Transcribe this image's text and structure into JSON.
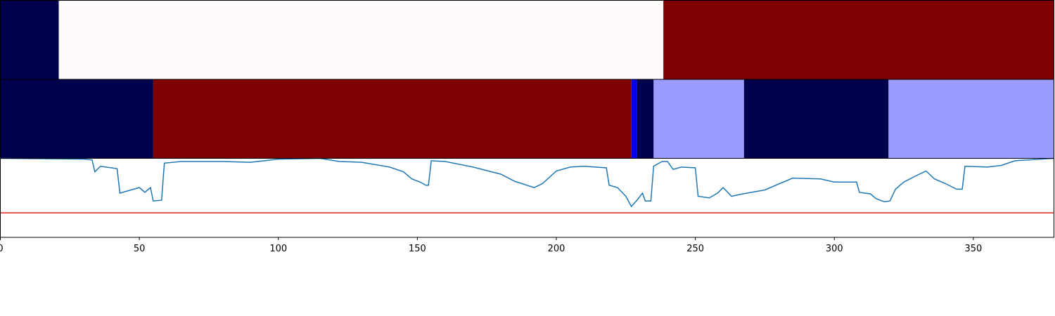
{
  "chart_data": [
    {
      "type": "segments",
      "xlim": [
        0,
        379
      ],
      "segments": [
        {
          "start": 0,
          "end": 21,
          "color": "#00004c"
        },
        {
          "start": 21,
          "end": 238.5,
          "color": "#fffbfb"
        },
        {
          "start": 238.5,
          "end": 379,
          "color": "#7f0000"
        }
      ]
    },
    {
      "type": "segments",
      "xlim": [
        0,
        379
      ],
      "segments": [
        {
          "start": 0,
          "end": 55,
          "color": "#00004c"
        },
        {
          "start": 55,
          "end": 227,
          "color": "#7f0000"
        },
        {
          "start": 227,
          "end": 229,
          "color": "#0000f0"
        },
        {
          "start": 229,
          "end": 235,
          "color": "#00004c"
        },
        {
          "start": 235,
          "end": 267.5,
          "color": "#9c9cff"
        },
        {
          "start": 267.5,
          "end": 319.5,
          "color": "#00004c"
        },
        {
          "start": 319.5,
          "end": 379,
          "color": "#9c9cff"
        }
      ]
    },
    {
      "type": "line",
      "xlim": [
        0,
        379
      ],
      "ylim": [
        0,
        1
      ],
      "xticks": [
        0,
        50,
        100,
        150,
        200,
        250,
        300,
        350
      ],
      "hline": 0.31,
      "hline_color": "#e0201b",
      "series": [
        {
          "color": "#1f77b4",
          "x": [
            0,
            30,
            33,
            34,
            36,
            42,
            43,
            46,
            50,
            52,
            54,
            55,
            58,
            59,
            65,
            80,
            90,
            100,
            115,
            122,
            130,
            140,
            145,
            148,
            151,
            153,
            154,
            155,
            160,
            170,
            180,
            185,
            192,
            195,
            200,
            205,
            210,
            218,
            219,
            222,
            225,
            227,
            229,
            231,
            232,
            234,
            235,
            238,
            240,
            242,
            245,
            250,
            251,
            255,
            258,
            260,
            263,
            267,
            275,
            285,
            295,
            300,
            308,
            309,
            313,
            315,
            318,
            320,
            322,
            325,
            330,
            333,
            336,
            340,
            344,
            346,
            347,
            355,
            360,
            365,
            379
          ],
          "values": [
            1.0,
            0.99,
            0.98,
            0.83,
            0.9,
            0.87,
            0.56,
            0.59,
            0.63,
            0.57,
            0.63,
            0.46,
            0.47,
            0.94,
            0.96,
            0.96,
            0.95,
            0.99,
            1.0,
            0.96,
            0.95,
            0.89,
            0.83,
            0.74,
            0.7,
            0.66,
            0.66,
            0.97,
            0.96,
            0.89,
            0.8,
            0.71,
            0.63,
            0.68,
            0.84,
            0.89,
            0.9,
            0.88,
            0.66,
            0.63,
            0.52,
            0.39,
            0.47,
            0.56,
            0.46,
            0.46,
            0.9,
            0.96,
            0.96,
            0.86,
            0.89,
            0.88,
            0.52,
            0.5,
            0.56,
            0.63,
            0.52,
            0.55,
            0.6,
            0.75,
            0.74,
            0.7,
            0.7,
            0.57,
            0.55,
            0.49,
            0.45,
            0.46,
            0.61,
            0.7,
            0.79,
            0.84,
            0.74,
            0.68,
            0.61,
            0.61,
            0.9,
            0.89,
            0.91,
            0.97,
            1.0
          ]
        }
      ]
    }
  ]
}
